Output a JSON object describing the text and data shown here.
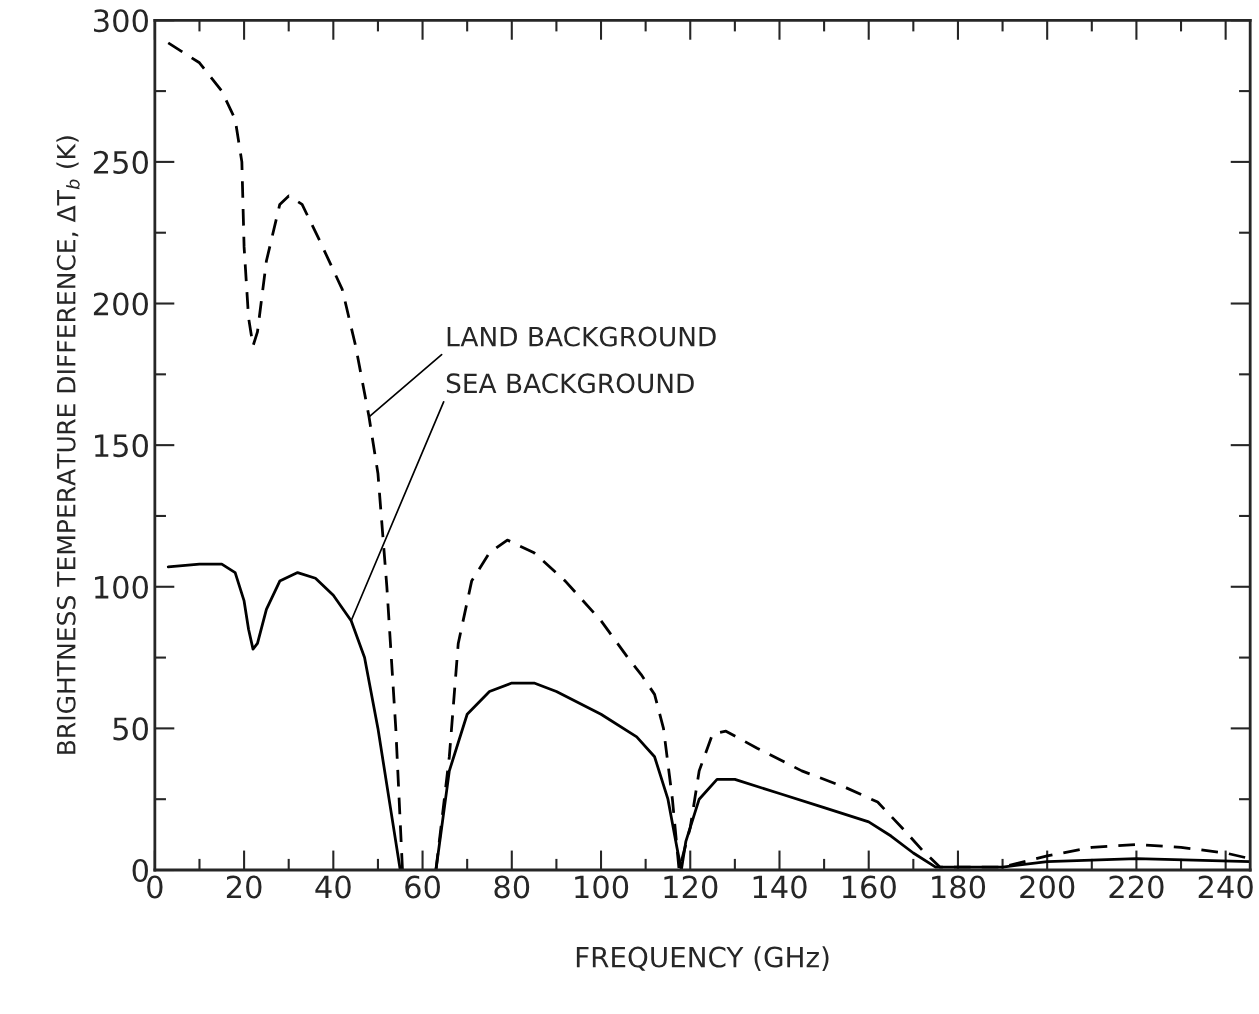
{
  "chart_data": {
    "type": "line",
    "xlabel": "FREQUENCY (GHz)",
    "ylabel": "BRIGHTNESS TEMPERATURE DIFFERENCE, ΔT$_{b}$ (K)",
    "xlim": [
      0,
      245.5
    ],
    "ylim": [
      0,
      300
    ],
    "xticks": [
      0,
      20,
      40,
      60,
      80,
      100,
      120,
      140,
      160,
      180,
      200,
      220,
      240
    ],
    "yticks": [
      0,
      50,
      100,
      150,
      200,
      250,
      300
    ],
    "grid": false,
    "legend": false,
    "series": [
      {
        "name": "LAND BACKGROUND",
        "color": "#000000",
        "line_style": "dashed",
        "x": [
          3,
          10,
          15,
          18,
          19.5,
          20,
          21,
          22,
          23,
          25,
          28,
          30,
          33,
          37,
          42,
          45,
          48,
          50,
          52,
          54,
          55.5,
          null,
          63,
          66,
          68,
          71,
          75,
          79,
          85,
          92,
          100,
          106,
          109,
          112,
          114,
          116,
          117.5,
          120,
          122,
          125,
          128,
          135,
          145,
          155,
          162,
          168,
          172,
          176,
          190,
          200,
          210,
          220,
          230,
          240,
          245.5
        ],
        "values": [
          292,
          285,
          275,
          265,
          250,
          220,
          195,
          185,
          190,
          215,
          235,
          238,
          235,
          222,
          205,
          185,
          160,
          140,
          100,
          50,
          0,
          null,
          0,
          40,
          80,
          102,
          112,
          116.5,
          112,
          102,
          88,
          75,
          69,
          62,
          50,
          25,
          0,
          15,
          35,
          48,
          49,
          43,
          35,
          29,
          24,
          14,
          7,
          1,
          1,
          5,
          8,
          9,
          8,
          6,
          4
        ]
      },
      {
        "name": "SEA BACKGROUND",
        "color": "#000000",
        "line_style": "solid",
        "x": [
          3,
          10,
          15,
          18,
          20,
          21,
          22,
          23,
          25,
          28,
          32,
          36,
          40,
          44,
          47,
          50,
          53,
          55,
          null,
          63,
          66,
          70,
          75,
          80,
          85,
          90,
          100,
          108,
          112,
          115,
          117,
          118,
          119,
          122,
          126,
          130,
          140,
          150,
          160,
          165,
          170,
          175,
          180,
          190,
          200,
          220,
          245.5
        ],
        "values": [
          107,
          108,
          108,
          105,
          95,
          85,
          78,
          80,
          92,
          102,
          105,
          103,
          97,
          88,
          75,
          50,
          20,
          0,
          null,
          0,
          35,
          55,
          63,
          66,
          66,
          63,
          55,
          47,
          40,
          25,
          8,
          0,
          10,
          25,
          32,
          32,
          27,
          22,
          17,
          12,
          6,
          1,
          1,
          1,
          3,
          4,
          3
        ]
      }
    ]
  }
}
